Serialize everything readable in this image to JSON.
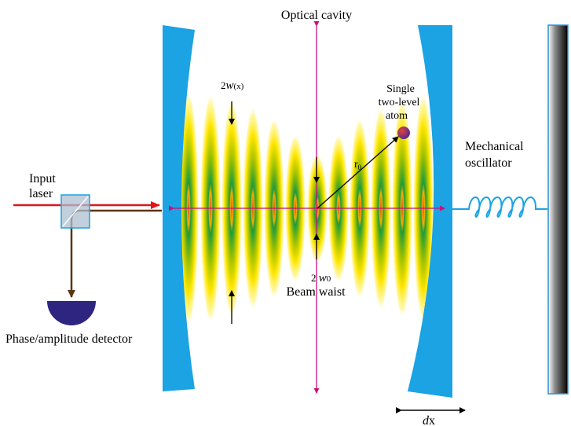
{
  "labels": {
    "title": "Optical cavity",
    "input_laser_1": "Input",
    "input_laser_2": "laser",
    "detector": "Phase/amplitude detector",
    "mode_width_prefix": "2",
    "mode_width_var": "w",
    "mode_width_arg": "(x)",
    "waist_prefix": "2 ",
    "waist_var": "w",
    "waist_sub": "0",
    "beam_waist": "Beam waist",
    "r0_var": "r",
    "r0_sub": "0",
    "atom_1": "Single",
    "atom_2": "two-level",
    "atom_3": "atom",
    "oscillator_1": "Mechanical",
    "oscillator_2": "oscillator",
    "dx_var": "d",
    "dx_unit": "x"
  },
  "colors": {
    "mirror": "#1ba3e3",
    "laser": "#e0141e",
    "path": "#5a3512",
    "axis": "#c8107a",
    "mode_outer": "#ffe600",
    "mode_mid": "#a6c400",
    "mode_inner": "#1f9a3a",
    "node_core": "#e04a10",
    "detector": "#2d2580",
    "atom": "#b0307a",
    "spring": "#1ba3e3"
  },
  "icons": {
    "beam_splitter": "beam-splitter-cube-icon",
    "detector": "half-disc-detector-icon",
    "atom": "atom-sphere-icon",
    "spring": "coil-spring-icon",
    "wall": "fixed-wall-icon"
  }
}
